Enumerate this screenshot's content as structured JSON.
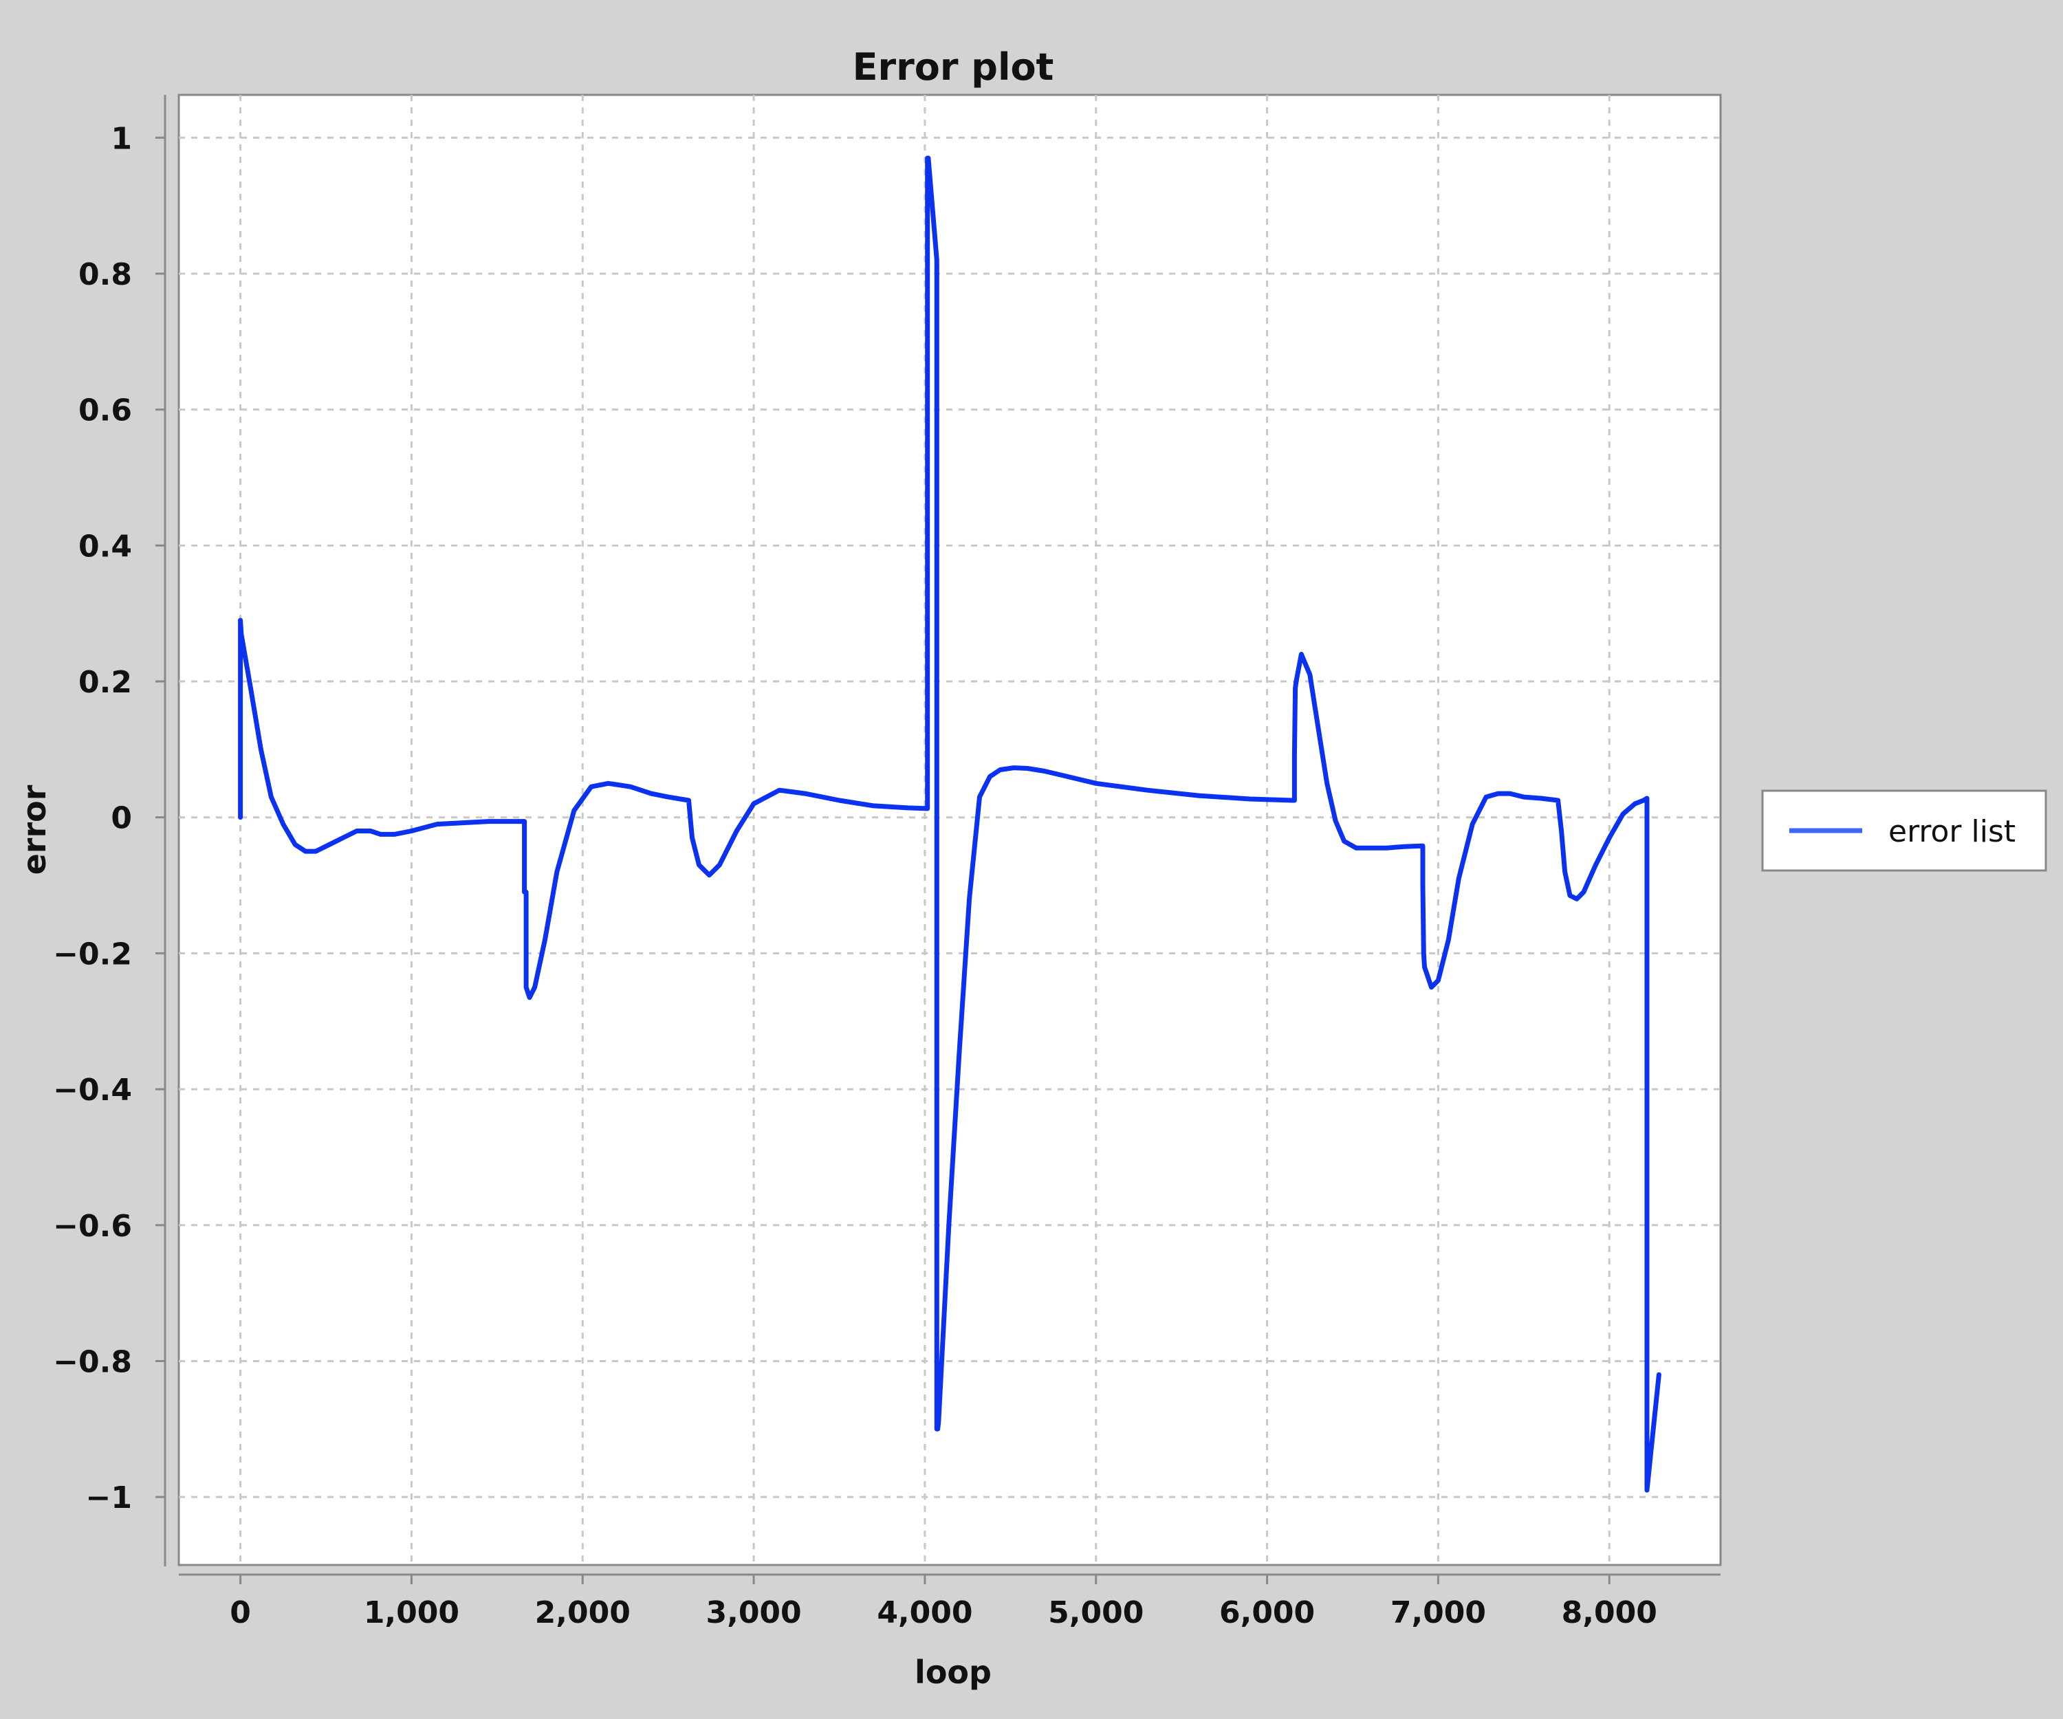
{
  "chart_data": {
    "type": "line",
    "title": "Error plot",
    "xlabel": "loop",
    "ylabel": "error",
    "xlim": [
      -360,
      8650
    ],
    "ylim": [
      -1.1,
      1.063
    ],
    "x_ticks": [
      0,
      1000,
      2000,
      3000,
      4000,
      5000,
      6000,
      7000,
      8000
    ],
    "x_tick_labels": [
      "0",
      "1,000",
      "2,000",
      "3,000",
      "4,000",
      "5,000",
      "6,000",
      "7,000",
      "8,000"
    ],
    "y_ticks": [
      1,
      0.8,
      0.6,
      0.4,
      0.2,
      0,
      -0.2,
      -0.4,
      -0.6,
      -0.8,
      -1
    ],
    "y_tick_labels": [
      "1",
      "0.8",
      "0.6",
      "0.4",
      "0.2",
      "0",
      "−0.2",
      "−0.4",
      "−0.6",
      "−0.8",
      "−1"
    ],
    "grid": true,
    "legend_position": "right",
    "series": [
      {
        "name": "error list",
        "color": "#0a32f0",
        "x": [
          0,
          0,
          5,
          60,
          120,
          180,
          250,
          320,
          380,
          440,
          520,
          600,
          680,
          760,
          820,
          900,
          1000,
          1150,
          1300,
          1450,
          1600,
          1660,
          1660,
          1670,
          1670,
          1690,
          1720,
          1780,
          1850,
          1950,
          2050,
          2150,
          2280,
          2400,
          2500,
          2620,
          2640,
          2680,
          2740,
          2800,
          2900,
          3000,
          3150,
          3300,
          3500,
          3700,
          3900,
          4015,
          4015,
          4020,
          4070,
          4070,
          4075,
          4080,
          4140,
          4200,
          4260,
          4320,
          4380,
          4440,
          4520,
          4600,
          4700,
          4800,
          5000,
          5300,
          5600,
          5900,
          6150,
          6160,
          6160,
          6165,
          6170,
          6200,
          6250,
          6300,
          6350,
          6400,
          6450,
          6520,
          6600,
          6700,
          6800,
          6900,
          6910,
          6910,
          6915,
          6920,
          6960,
          7000,
          7060,
          7120,
          7200,
          7280,
          7350,
          7420,
          7500,
          7600,
          7700,
          7720,
          7740,
          7770,
          7810,
          7850,
          7920,
          8000,
          8080,
          8150,
          8200,
          8220,
          8220,
          8290
        ],
        "y": [
          0,
          0.29,
          0.27,
          0.19,
          0.1,
          0.03,
          -0.01,
          -0.04,
          -0.05,
          -0.05,
          -0.04,
          -0.03,
          -0.02,
          -0.02,
          -0.025,
          -0.025,
          -0.02,
          -0.01,
          -0.008,
          -0.006,
          -0.006,
          -0.006,
          -0.11,
          -0.11,
          -0.25,
          -0.265,
          -0.25,
          -0.18,
          -0.08,
          0.01,
          0.045,
          0.05,
          0.045,
          0.035,
          0.03,
          0.025,
          -0.03,
          -0.07,
          -0.085,
          -0.07,
          -0.02,
          0.02,
          0.04,
          0.035,
          0.025,
          0.017,
          0.014,
          0.013,
          0.97,
          0.97,
          0.82,
          -0.9,
          -0.9,
          -0.89,
          -0.6,
          -0.35,
          -0.12,
          0.03,
          0.06,
          0.07,
          0.073,
          0.072,
          0.068,
          0.062,
          0.05,
          0.04,
          0.032,
          0.027,
          0.025,
          0.025,
          0.09,
          0.19,
          0.2,
          0.24,
          0.21,
          0.13,
          0.05,
          -0.005,
          -0.035,
          -0.045,
          -0.045,
          -0.045,
          -0.043,
          -0.042,
          -0.042,
          -0.1,
          -0.2,
          -0.22,
          -0.25,
          -0.24,
          -0.18,
          -0.09,
          -0.01,
          0.03,
          0.035,
          0.035,
          0.03,
          0.028,
          0.025,
          -0.02,
          -0.08,
          -0.115,
          -0.12,
          -0.11,
          -0.07,
          -0.03,
          0.005,
          0.02,
          0.025,
          0.028,
          -0.99,
          -0.82
        ]
      }
    ]
  }
}
